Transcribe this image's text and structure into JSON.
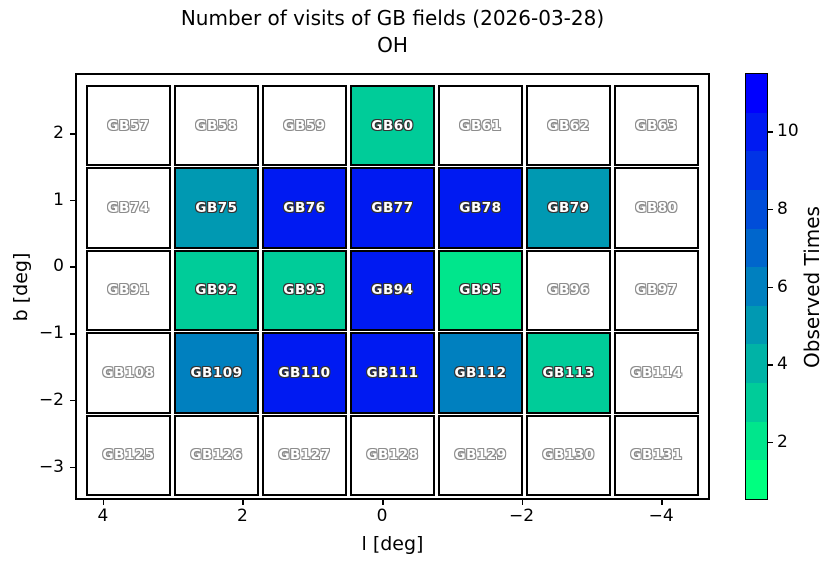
{
  "chart_data": {
    "type": "heatmap",
    "title": "Number of visits of GB fields (2026-03-28)",
    "subtitle": "OH",
    "xlabel": "l [deg]",
    "ylabel": "b [deg]",
    "colorbar_label": "Observed Times",
    "x_range": [
      4.4,
      -4.7
    ],
    "y_range": [
      -3.5,
      2.9
    ],
    "x_ticks": [
      {
        "value": 4,
        "label": "4"
      },
      {
        "value": 2,
        "label": "2"
      },
      {
        "value": 0,
        "label": "0"
      },
      {
        "value": -2,
        "label": "−2"
      },
      {
        "value": -4,
        "label": "−4"
      }
    ],
    "y_ticks": [
      {
        "value": 2,
        "label": "2"
      },
      {
        "value": 1,
        "label": "1"
      },
      {
        "value": 0,
        "label": "0"
      },
      {
        "value": -1,
        "label": "−1"
      },
      {
        "value": -2,
        "label": "−2"
      },
      {
        "value": -3,
        "label": "−3"
      }
    ],
    "empty_color": "#ffffff",
    "colorbar": {
      "range": [
        0.5,
        11.5
      ],
      "ticks": [
        {
          "value": 2,
          "label": "2"
        },
        {
          "value": 4,
          "label": "4"
        },
        {
          "value": 6,
          "label": "6"
        },
        {
          "value": 8,
          "label": "8"
        },
        {
          "value": 10,
          "label": "10"
        }
      ],
      "colormap_name": "winter_r",
      "segments": [
        {
          "value": 1,
          "color": "#00FF80"
        },
        {
          "value": 2,
          "color": "#00E68C"
        },
        {
          "value": 3,
          "color": "#00CC99"
        },
        {
          "value": 4,
          "color": "#00B3A6"
        },
        {
          "value": 5,
          "color": "#0099B2"
        },
        {
          "value": 6,
          "color": "#0080BF"
        },
        {
          "value": 7,
          "color": "#0066CC"
        },
        {
          "value": 8,
          "color": "#004DD9"
        },
        {
          "value": 9,
          "color": "#0033E6"
        },
        {
          "value": 10,
          "color": "#001AF2"
        },
        {
          "value": 11,
          "color": "#0000FF"
        }
      ]
    },
    "rows": [
      {
        "cells": [
          {
            "name": "GB57",
            "visits": 0
          },
          {
            "name": "GB58",
            "visits": 0
          },
          {
            "name": "GB59",
            "visits": 0
          },
          {
            "name": "GB60",
            "visits": 3
          },
          {
            "name": "GB61",
            "visits": 0
          },
          {
            "name": "GB62",
            "visits": 0
          },
          {
            "name": "GB63",
            "visits": 0
          }
        ]
      },
      {
        "cells": [
          {
            "name": "GB74",
            "visits": 0
          },
          {
            "name": "GB75",
            "visits": 5
          },
          {
            "name": "GB76",
            "visits": 10
          },
          {
            "name": "GB77",
            "visits": 10
          },
          {
            "name": "GB78",
            "visits": 10
          },
          {
            "name": "GB79",
            "visits": 5
          },
          {
            "name": "GB80",
            "visits": 0
          }
        ]
      },
      {
        "cells": [
          {
            "name": "GB91",
            "visits": 0
          },
          {
            "name": "GB92",
            "visits": 3
          },
          {
            "name": "GB93",
            "visits": 3
          },
          {
            "name": "GB94",
            "visits": 10
          },
          {
            "name": "GB95",
            "visits": 2
          },
          {
            "name": "GB96",
            "visits": 0
          },
          {
            "name": "GB97",
            "visits": 0
          }
        ]
      },
      {
        "cells": [
          {
            "name": "GB108",
            "visits": 0
          },
          {
            "name": "GB109",
            "visits": 6
          },
          {
            "name": "GB110",
            "visits": 10
          },
          {
            "name": "GB111",
            "visits": 10
          },
          {
            "name": "GB112",
            "visits": 6
          },
          {
            "name": "GB113",
            "visits": 3
          },
          {
            "name": "GB114",
            "visits": 0
          }
        ]
      },
      {
        "cells": [
          {
            "name": "GB125",
            "visits": 0
          },
          {
            "name": "GB126",
            "visits": 0
          },
          {
            "name": "GB127",
            "visits": 0
          },
          {
            "name": "GB128",
            "visits": 0
          },
          {
            "name": "GB129",
            "visits": 0
          },
          {
            "name": "GB130",
            "visits": 0
          },
          {
            "name": "GB131",
            "visits": 0
          }
        ]
      }
    ]
  }
}
